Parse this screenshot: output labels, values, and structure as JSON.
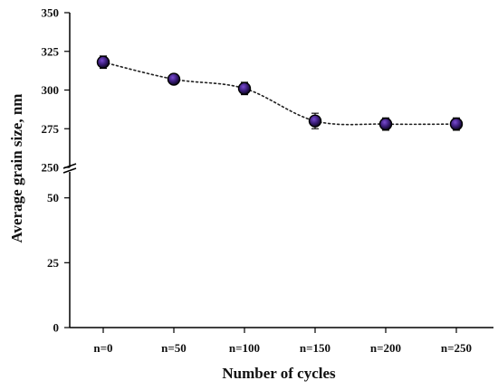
{
  "chart_data": {
    "type": "line",
    "title": "",
    "xlabel": "Number of cycles",
    "ylabel": "Average grain size, nm",
    "categories": [
      "n=0",
      "n=50",
      "n=100",
      "n=150",
      "n=200",
      "n=250"
    ],
    "series": [
      {
        "values": [
          318,
          307,
          301,
          280,
          278,
          278
        ],
        "errors": [
          4,
          3,
          4,
          5,
          4,
          4
        ]
      }
    ],
    "y_axis_break": true,
    "y_segments": [
      {
        "range": [
          0,
          60
        ],
        "ticks": [
          0,
          25,
          50
        ]
      },
      {
        "range": [
          250,
          350
        ],
        "ticks": [
          250,
          275,
          300,
          325,
          350
        ]
      }
    ],
    "grid": false,
    "legend": "none",
    "colors": {
      "marker_fill": "#3a1d78",
      "marker_edge": "#000000",
      "line": "#222222",
      "axis": "#000000"
    }
  }
}
